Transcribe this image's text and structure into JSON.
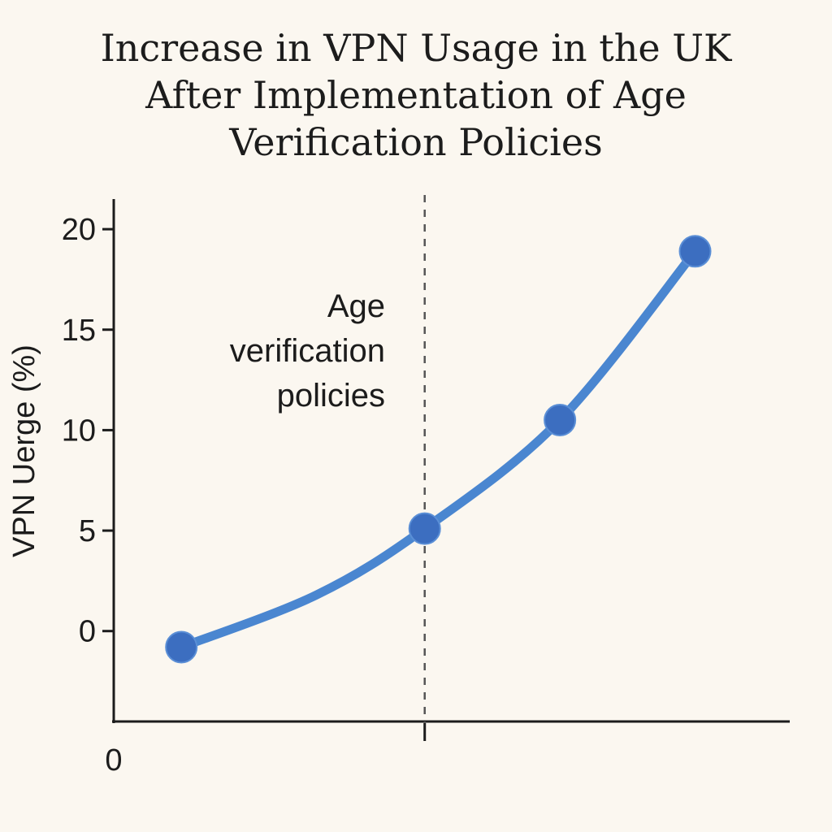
{
  "chart_data": {
    "type": "line",
    "title_lines": [
      "Increase in VPN Usage in the UK",
      "After Implementation of Age",
      "Verification Policies"
    ],
    "ylabel": "VPN Uerge (%)",
    "xlabel": "",
    "x_tick_label": "0",
    "yticks": [
      0,
      5,
      10,
      15,
      20
    ],
    "ylim": [
      -4.5,
      21.5
    ],
    "xlim": [
      0,
      10
    ],
    "series": [
      {
        "x": [
          1,
          3,
          4.6,
          6.6,
          8.6
        ],
        "y": [
          -0.8,
          1.8,
          5.1,
          10.5,
          18.9
        ],
        "markers": [
          true,
          false,
          true,
          true,
          true
        ]
      }
    ],
    "annotation": {
      "lines": [
        "Age",
        "verification",
        "policies"
      ],
      "x": 4.6
    },
    "grid": false,
    "colors": {
      "line": "#4a86d0",
      "marker": "#3c6ec0",
      "axis": "#1c1c1c",
      "background": "#fbf7f0"
    }
  }
}
